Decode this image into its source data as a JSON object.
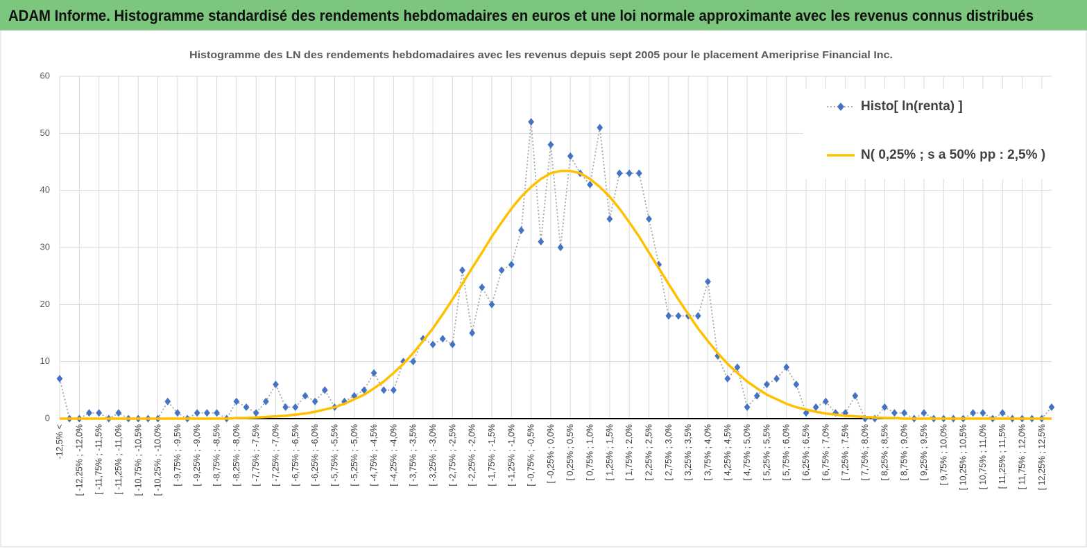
{
  "header": {
    "title": "ADAM Informe. Histogramme standardisé des rendements hebdomadaires en euros et une loi normale approximante avec les revenus connus distribués"
  },
  "chart_data": {
    "type": "line",
    "title": "Histogramme  des LN des rendements hebdomadaires avec les revenus depuis sept 2005 pour le placement Ameriprise  Financial Inc.",
    "categories": [
      "-12,5% <",
      null,
      "[ -12,25% ; -12,0%",
      null,
      "[ -11,75% ; -11,5%",
      null,
      "[ -11,25% ; -11,0%",
      null,
      "[ -10,75% ; -10,5%",
      null,
      "[ -10,25% ; -10,0%",
      null,
      "[ -9,75% ; -9,5%",
      null,
      "[ -9,25% ; -9,0%",
      null,
      "[ -8,75% ; -8,5%",
      null,
      "[ -8,25% ; -8,0%",
      null,
      "[ -7,75% ; -7,5%",
      null,
      "[ -7,25% ; -7,0%",
      null,
      "[ -6,75% ; -6,5%",
      null,
      "[ -6,25% ; -6,0%",
      null,
      "[ -5,75% ; -5,5%",
      null,
      "[ -5,25% ; -5,0%",
      null,
      "[ -4,75% ; -4,5%",
      null,
      "[ -4,25% ; -4,0%",
      null,
      "[ -3,75% ; -3,5%",
      null,
      "[ -3,25% ; -3,0%",
      null,
      "[ -2,75% ; -2,5%",
      null,
      "[ -2,25% ; -2,0%",
      null,
      "[ -1,75% ; -1,5%",
      null,
      "[ -1,25% ; -1,0%",
      null,
      "[ -0,75% ; -0,5%",
      null,
      "[ -0,25% ; 0,0%",
      null,
      "[ 0,25% ; 0,5%",
      null,
      "[ 0,75% ; 1,0%",
      null,
      "[ 1,25% ; 1,5%",
      null,
      "[ 1,75% ; 2,0%",
      null,
      "[ 2,25% ; 2,5%",
      null,
      "[ 2,75% ; 3,0%",
      null,
      "[ 3,25% ; 3,5%",
      null,
      "[ 3,75% ; 4,0%",
      null,
      "[ 4,25% ; 4,5%",
      null,
      "[ 4,75% ; 5,0%",
      null,
      "[ 5,25% ; 5,5%",
      null,
      "[ 5,75% ; 6,0%",
      null,
      "[ 6,25% ; 6,5%",
      null,
      "[ 6,75% ; 7,0%",
      null,
      "[ 7,25% ; 7,5%",
      null,
      "[ 7,75% ; 8,0%",
      null,
      "[ 8,25% ; 8,5%",
      null,
      "[ 8,75% ; 9,0%",
      null,
      "[ 9,25% ; 9,5%",
      null,
      "[ 9,75% ; 10,0%",
      null,
      "[ 10,25% ; 10,5%",
      null,
      "[ 10,75% ; 11,0%",
      null,
      "[ 11,25% ; 11,5%",
      null,
      "[ 11,75% ; 12,0%",
      null,
      "[ 12,25% ; 12,5%",
      null
    ],
    "series": [
      {
        "name": "Histo[ ln(renta) ]",
        "color": "#4472c4",
        "line_color": "#a6a6a6",
        "line_style": "dotted",
        "marker": "diamond",
        "values": [
          7,
          0,
          0,
          1,
          1,
          0,
          1,
          0,
          0,
          0,
          0,
          3,
          1,
          0,
          1,
          1,
          1,
          0,
          3,
          2,
          1,
          3,
          6,
          2,
          2,
          4,
          3,
          5,
          2,
          3,
          4,
          5,
          8,
          5,
          5,
          10,
          10,
          14,
          13,
          14,
          13,
          26,
          15,
          23,
          20,
          26,
          27,
          33,
          52,
          31,
          48,
          30,
          46,
          43,
          41,
          51,
          35,
          43,
          43,
          43,
          35,
          27,
          18,
          18,
          18,
          18,
          24,
          11,
          7,
          9,
          2,
          4,
          6,
          7,
          9,
          6,
          1,
          2,
          3,
          1,
          1,
          4,
          0,
          0,
          2,
          1,
          1,
          0,
          1,
          0,
          0,
          0,
          0,
          1,
          1,
          0,
          1,
          0,
          0,
          0,
          0,
          2
        ]
      },
      {
        "name": "N( 0,25% ; s a 50% pp : 2,5% )",
        "color": "#ffc000",
        "line_style": "solid",
        "marker": "none",
        "values": [
          0,
          0,
          0,
          0,
          0,
          0,
          0,
          0,
          0,
          0,
          0,
          0,
          0,
          0,
          0,
          0,
          0,
          0,
          0.1,
          0.1,
          0.2,
          0.3,
          0.4,
          0.5,
          0.7,
          0.9,
          1.2,
          1.6,
          2.0,
          2.6,
          3.4,
          4.2,
          5.3,
          6.5,
          8.0,
          9.6,
          11.5,
          13.6,
          15.8,
          18.3,
          20.9,
          23.6,
          26.4,
          29.1,
          31.9,
          34.4,
          36.8,
          38.9,
          40.6,
          42.0,
          43.0,
          43.4,
          43.4,
          43.0,
          42.0,
          40.6,
          38.9,
          36.8,
          34.4,
          31.9,
          29.1,
          26.4,
          23.6,
          20.9,
          18.3,
          15.8,
          13.6,
          11.5,
          9.6,
          8.0,
          6.5,
          5.3,
          4.2,
          3.4,
          2.6,
          2.0,
          1.6,
          1.2,
          0.9,
          0.7,
          0.5,
          0.4,
          0.3,
          0.2,
          0.1,
          0.1,
          0,
          0,
          0,
          0,
          0,
          0,
          0,
          0,
          0,
          0,
          0,
          0,
          0,
          0,
          0,
          0
        ]
      }
    ],
    "ylim": [
      0,
      60
    ],
    "yticks": [
      0,
      10,
      20,
      30,
      40,
      50,
      60
    ],
    "grid": true,
    "legend": "upper right"
  }
}
